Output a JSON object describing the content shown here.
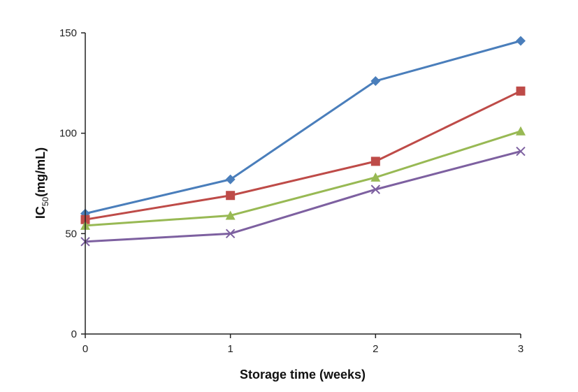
{
  "chart_data": {
    "type": "line",
    "title": "",
    "xlabel": "Storage time (weeks)",
    "ylabel_main": "IC",
    "ylabel_sub": "50",
    "ylabel_rest": "(mg/mL)",
    "x": [
      0,
      1,
      2,
      3
    ],
    "x_tick_labels": [
      "0",
      "1",
      "2",
      "3"
    ],
    "y_ticks": [
      0,
      50,
      100,
      150
    ],
    "y_tick_labels": [
      "0",
      "50",
      "100",
      "150"
    ],
    "ylim": [
      0,
      150
    ],
    "grid": false,
    "series": [
      {
        "values": [
          60,
          77,
          126,
          146
        ],
        "color": "#4a7ebb",
        "marker": "diamond"
      },
      {
        "values": [
          57,
          69,
          86,
          121
        ],
        "color": "#be4b48",
        "marker": "square"
      },
      {
        "values": [
          54,
          59,
          78,
          101
        ],
        "color": "#98b954",
        "marker": "triangle"
      },
      {
        "values": [
          46,
          50,
          72,
          91
        ],
        "color": "#7d60a0",
        "marker": "x"
      }
    ]
  }
}
